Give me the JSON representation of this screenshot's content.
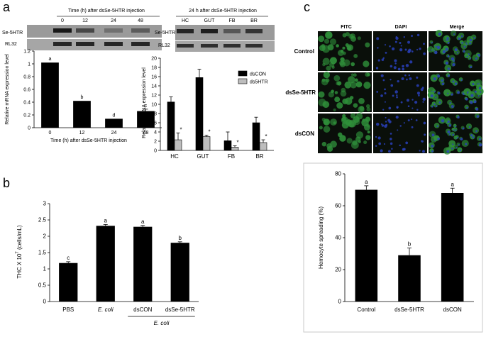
{
  "panels": {
    "a": "a",
    "b": "b",
    "c": "c"
  },
  "blots": {
    "left": {
      "header": "Time (h) after dsSe-5HTR injection",
      "lane_labels": [
        "0",
        "12",
        "24",
        "48"
      ],
      "row_labels": [
        "Se-5HTR",
        "RL32"
      ]
    },
    "right": {
      "header": "24 h after dsSe-5HTR injection",
      "lane_labels": [
        "HC",
        "GUT",
        "FB",
        "BR"
      ],
      "row_labels": [
        "Se-5HTR",
        "RL32"
      ]
    }
  },
  "micrographs": {
    "columns": [
      "FITC",
      "DAPI",
      "Merge"
    ],
    "rows": [
      "Control",
      "dsSe-5HTR",
      "dsCON"
    ]
  },
  "chart_data": [
    {
      "id": "a-left",
      "type": "bar",
      "categories": [
        "0",
        "12",
        "24",
        "48"
      ],
      "values": [
        1.02,
        0.42,
        0.14,
        0.26
      ],
      "errors": [
        0.0,
        0.0,
        0.0,
        0.03
      ],
      "letters": [
        "a",
        "b",
        "d",
        "c"
      ],
      "xlabel": "Time (h) after dsSe-5HTR injection",
      "ylabel": "Relative mRNA expression level",
      "ylim": [
        0,
        1.2
      ],
      "yticks": [
        "0",
        "0.2",
        "0.4",
        "0.6",
        "0.8",
        "1",
        "1.2"
      ]
    },
    {
      "id": "a-right",
      "type": "bar",
      "categories": [
        "HC",
        "GUT",
        "FB",
        "BR"
      ],
      "series": [
        {
          "name": "dsCON",
          "values": [
            10.5,
            15.8,
            2.1,
            6.0
          ],
          "errors": [
            1.1,
            1.8,
            1.9,
            1.2
          ],
          "color": "#000000"
        },
        {
          "name": "ds5HTR",
          "values": [
            2.3,
            3.0,
            0.7,
            1.7
          ],
          "errors": [
            1.5,
            0.3,
            0.3,
            0.6
          ],
          "color": "#bdbdbd"
        }
      ],
      "annotations": [
        "*",
        "*",
        "*",
        "*"
      ],
      "ylabel": "Relative mRNA expression level",
      "ylim": [
        0,
        20
      ],
      "yticks": [
        "0",
        "2",
        "4",
        "6",
        "8",
        "10",
        "12",
        "14",
        "16",
        "18",
        "20"
      ],
      "legend": "top-right"
    },
    {
      "id": "b",
      "type": "bar",
      "categories": [
        "PBS",
        "E. coli",
        "dsCON",
        "dsSe-5HTR"
      ],
      "values": [
        1.18,
        2.32,
        2.29,
        1.8
      ],
      "errors": [
        0.04,
        0.04,
        0.04,
        0.03
      ],
      "letters": [
        "c",
        "a",
        "a",
        "b"
      ],
      "group_label": "E. coli",
      "ylabel_main": "THC X 10",
      "ylabel_exp": "7",
      "ylabel_unit": " (cells/mL)",
      "ylim": [
        0,
        3
      ],
      "yticks": [
        "0",
        "0.5",
        "1",
        "1.5",
        "2",
        "2.5",
        "3"
      ]
    },
    {
      "id": "c",
      "type": "bar",
      "categories": [
        "Control",
        "dsSe-5HTR",
        "dsCON"
      ],
      "values": [
        70,
        29,
        68
      ],
      "errors": [
        2.5,
        4.5,
        3.0
      ],
      "letters": [
        "a",
        "b",
        "a"
      ],
      "ylabel": "Hemocyte spreading (%)",
      "ylim": [
        0,
        80
      ],
      "yticks": [
        "0",
        "20",
        "40",
        "60",
        "80"
      ]
    }
  ],
  "colors": {
    "bar": "#000000",
    "bar_light": "#bdbdbd",
    "fitc": "#2f8f3a",
    "dapi": "#2940b8",
    "micro_bg": "#0a0f0a"
  }
}
